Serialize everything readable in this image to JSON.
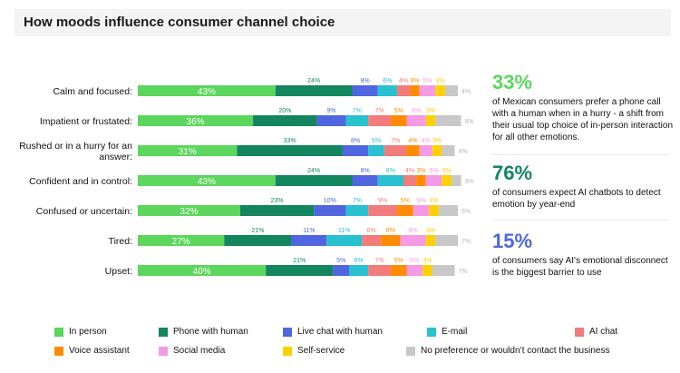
{
  "header": {
    "title": "How moods influence consumer channel choice"
  },
  "chart_data": {
    "type": "bar",
    "stacked": true,
    "orientation": "horizontal",
    "categories": [
      "Calm and focused:",
      "Impatient or frustated:",
      "Rushed or in a hurry for an answer:",
      "Confident and in control:",
      "Confused or uncertain:",
      "Tired:",
      "Upset:"
    ],
    "category_lines": [
      [
        "Calm and focused:"
      ],
      [
        "Impatient or frustated:"
      ],
      [
        "Rushed or in a hurry for an",
        "answer:"
      ],
      [
        "Confident and in control:"
      ],
      [
        "Confused or uncertain:"
      ],
      [
        "Tired:"
      ],
      [
        "Upset:"
      ]
    ],
    "series": [
      {
        "name": "In person",
        "color": "#5cd65c",
        "values": [
          43,
          36,
          31,
          43,
          32,
          27,
          40
        ]
      },
      {
        "name": "Phone with human",
        "color": "#13855f",
        "values": [
          24,
          20,
          33,
          24,
          23,
          21,
          21
        ]
      },
      {
        "name": "Live chat with human",
        "color": "#4f66e0",
        "values": [
          8,
          9,
          8,
          8,
          10,
          11,
          5
        ]
      },
      {
        "name": "E-mail",
        "color": "#29c0d0",
        "values": [
          6,
          7,
          5,
          8,
          7,
          11,
          6
        ]
      },
      {
        "name": "AI chat",
        "color": "#f27b7b",
        "values": [
          4,
          7,
          7,
          4,
          9,
          6,
          7
        ]
      },
      {
        "name": "Voice assistant",
        "color": "#ff8c00",
        "values": [
          3,
          5,
          4,
          3,
          5,
          6,
          5
        ]
      },
      {
        "name": "Social media",
        "color": "#f59ae5",
        "values": [
          5,
          6,
          4,
          5,
          5,
          8,
          5
        ]
      },
      {
        "name": "Self-service",
        "color": "#ffd000",
        "values": [
          3,
          3,
          3,
          3,
          3,
          3,
          3
        ]
      },
      {
        "name": "No preference or wouldn't contact the business",
        "color": "#c8c8c8",
        "values": [
          4,
          8,
          4,
          3,
          6,
          7,
          7
        ]
      }
    ],
    "value_suffix": "%"
  },
  "legend": {
    "items": [
      {
        "label": "In person",
        "color": "#5cd65c"
      },
      {
        "label": "Phone with human",
        "color": "#13855f"
      },
      {
        "label": "Live chat with human",
        "color": "#4f66e0"
      },
      {
        "label": "E-mail",
        "color": "#29c0d0"
      },
      {
        "label": "AI chat",
        "color": "#f27b7b"
      },
      {
        "label": "Voice assistant",
        "color": "#ff8c00"
      },
      {
        "label": "Social media",
        "color": "#f59ae5"
      },
      {
        "label": "Self-service",
        "color": "#ffd000"
      },
      {
        "label": "No preference or wouldn’t contact the business",
        "color": "#c8c8c8"
      }
    ]
  },
  "stats": [
    {
      "value": "33%",
      "color": "#5cd65c",
      "text": "of Mexican consumers prefer a phone call with a human when in a hurry - a shift from their usual top choice of in-person interaction for all other emotions."
    },
    {
      "value": "76%",
      "color": "#13855f",
      "text": "of consumers expect AI chatbots to detect emotion by year-end"
    },
    {
      "value": "15%",
      "color": "#4f66e0",
      "text": "of consumers say AI's emotional disconnect is the biggest barrier to use"
    }
  ]
}
